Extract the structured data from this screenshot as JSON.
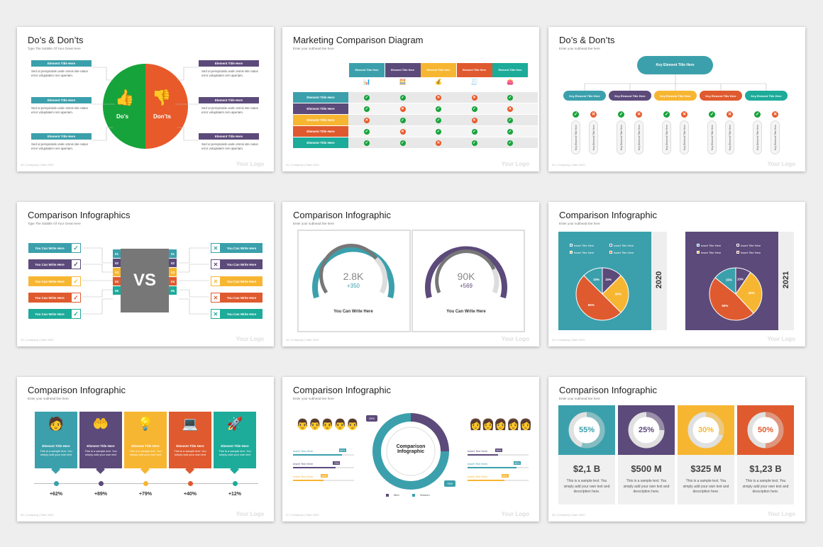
{
  "colors": {
    "teal": "#3ba0ac",
    "purple": "#5c4a7a",
    "yellow": "#f7b632",
    "orange": "#df5a2e",
    "green": "#1dab9a",
    "dgreen": "#17a33b",
    "red": "#e85a2a",
    "grey": "#bdbdbd"
  },
  "footer": {
    "company": "| Company | Date 2020",
    "logo": "Your Logo"
  },
  "s1": {
    "num": "35",
    "title": "Do’s & Don’ts",
    "subtitle": "Type The Subtitle Of Your Great Here",
    "left_title": "Element Title Here",
    "right_title": "Element Title Here",
    "body": "Sed ut perspiciatis unde omnis iste natus error voluptatem rem aperiam.",
    "dos": "Do’s",
    "donts": "Don’ts"
  },
  "s2": {
    "num": "31",
    "title": "Marketing Comparison Diagram",
    "subtitle": "Enter your subhead line here",
    "col_header": "Element Title Here",
    "row_header": "Element Title Here",
    "grid": [
      [
        "y",
        "y",
        "n",
        "n",
        "y"
      ],
      [
        "y",
        "n",
        "y",
        "y",
        "n"
      ],
      [
        "n",
        "y",
        "y",
        "n",
        "y"
      ],
      [
        "y",
        "n",
        "y",
        "y",
        "y"
      ],
      [
        "y",
        "y",
        "n",
        "y",
        "y"
      ]
    ]
  },
  "s3": {
    "num": "32",
    "title": "Do’s & Don’ts",
    "subtitle": "Enter your subhead line here",
    "key_title": "Key Element Title Here",
    "key_item": "Key Element Title Here",
    "vert": "Key Element Title Here"
  },
  "s4": {
    "num": "33",
    "title": "Comparison Infographics",
    "subtitle": "Type The Subtitle Of Your Great Here",
    "item": "You Can Write Here",
    "vs": "VS",
    "nums": [
      "01",
      "02",
      "03",
      "04",
      "05"
    ]
  },
  "s5": {
    "num": "34",
    "title": "Comparison Infographic",
    "subtitle": "Enter your subhead line here",
    "g1_value": "2.8K",
    "g1_delta": "+350",
    "g2_value": "90K",
    "g2_delta": "+569",
    "caption": "You Can Write Here"
  },
  "s6": {
    "num": "33",
    "title": "Comparison Infographic",
    "subtitle": "Enter your subhead line here",
    "legend": "Insert Title Here",
    "y1": "2020",
    "y2": "2021",
    "pie1": [
      {
        "label": "15%",
        "value": 15,
        "color": "#5c4a7a"
      },
      {
        "label": "30%",
        "value": 30,
        "color": "#f7b632"
      },
      {
        "label": "60%",
        "value": 60,
        "color": "#df5a2e"
      },
      {
        "label": "15%",
        "value": 15,
        "color": "#3ba0ac"
      }
    ],
    "pie2": [
      {
        "label": "10%",
        "value": 10,
        "color": "#5c4a7a"
      },
      {
        "label": "30%",
        "value": 30,
        "color": "#f7b632"
      },
      {
        "label": "50%",
        "value": 50,
        "color": "#df5a2e"
      },
      {
        "label": "15%",
        "value": 15,
        "color": "#3ba0ac"
      }
    ]
  },
  "s7": {
    "num": "35",
    "title": "Comparison Infographic",
    "subtitle": "Enter your subhead line here",
    "card_title": "Element Title Here",
    "card_text": "This is a sample text. You simply add your own text",
    "pcts": [
      "+62%",
      "+89%",
      "+79%",
      "+40%",
      "+12%"
    ]
  },
  "s8": {
    "num": "37",
    "title": "Comparison Infographic",
    "subtitle": "Enter your subhead line here",
    "center": "Comparison Infographic",
    "bar_label": "Insert Text Here",
    "donut": [
      {
        "label": "25%",
        "value": 25
      },
      {
        "label": "75%",
        "value": 75
      }
    ],
    "men": "Men",
    "women": "Women",
    "left_bars": [
      "80%",
      "70%",
      "50%"
    ],
    "right_bars": [
      "50%",
      "80%",
      "60%"
    ]
  },
  "s9": {
    "num": "38",
    "title": "Comparison Infographic",
    "subtitle": "Enter your subhead line here",
    "cards": [
      {
        "pct": "55%",
        "value": 0.55,
        "amount": "$2,1 B"
      },
      {
        "pct": "25%",
        "value": 0.25,
        "amount": "$500 M"
      },
      {
        "pct": "30%",
        "value": 0.3,
        "amount": "$325 M"
      },
      {
        "pct": "50%",
        "value": 0.5,
        "amount": "$1,23 B"
      }
    ],
    "text": "This is a sample text. You simply add your own text and description here."
  }
}
